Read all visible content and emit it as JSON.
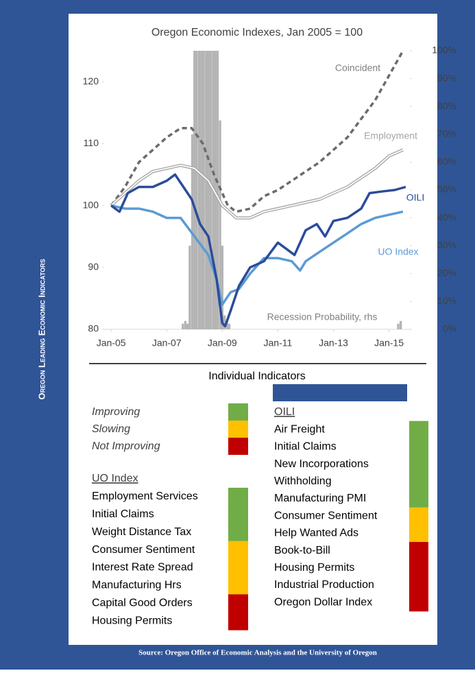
{
  "side_label": "Oregon Leading Economic Indicators",
  "chart_data": {
    "type": "line",
    "title": "Oregon Economic Indexes, Jan 2005 = 100",
    "xlim": [
      2004.75,
      2015.75
    ],
    "xticks": [
      {
        "value": 2005,
        "label": "Jan-05"
      },
      {
        "value": 2007,
        "label": "Jan-07"
      },
      {
        "value": 2009,
        "label": "Jan-09"
      },
      {
        "value": 2011,
        "label": "Jan-11"
      },
      {
        "value": 2013,
        "label": "Jan-13"
      },
      {
        "value": 2015,
        "label": "Jan-15"
      }
    ],
    "ylim": [
      80,
      125
    ],
    "yticks": [
      80,
      90,
      100,
      110,
      120
    ],
    "y2lim": [
      0,
      100
    ],
    "y2ticks": [
      {
        "value": 0,
        "label": "0%"
      },
      {
        "value": 10,
        "label": "10%"
      },
      {
        "value": 20,
        "label": "20%"
      },
      {
        "value": 30,
        "label": "30%"
      },
      {
        "value": 40,
        "label": "40%"
      },
      {
        "value": 50,
        "label": "50%"
      },
      {
        "value": 60,
        "label": "60%"
      },
      {
        "value": 70,
        "label": "70%"
      },
      {
        "value": 80,
        "label": "80%"
      },
      {
        "value": 90,
        "label": "90%"
      },
      {
        "value": 100,
        "label": "100%"
      }
    ],
    "series": [
      {
        "name": "Recession Probability, rhs",
        "color": "#b4b4b4",
        "style": "bar",
        "axis": "y2",
        "x": [
          2007.58,
          2007.67,
          2007.75,
          2007.83,
          2007.92,
          2008.0,
          2008.08,
          2008.17,
          2008.25,
          2008.33,
          2008.42,
          2008.5,
          2008.58,
          2008.67,
          2008.75,
          2008.83,
          2008.92,
          2009.0,
          2009.08,
          2009.17,
          2009.25,
          2015.33,
          2015.42
        ],
        "values": [
          2,
          3,
          2,
          30,
          70,
          100,
          100,
          100,
          100,
          100,
          100,
          100,
          100,
          100,
          100,
          100,
          75,
          30,
          5,
          3,
          2,
          2,
          3
        ]
      },
      {
        "name": "Coincident",
        "color": "#6b6b6b",
        "style": "dashed",
        "x": [
          2005,
          2005.5,
          2006,
          2006.5,
          2007,
          2007.5,
          2007.9,
          2008.3,
          2008.7,
          2009.2,
          2009.5,
          2010,
          2010.5,
          2011,
          2011.5,
          2012,
          2012.5,
          2013,
          2013.5,
          2014,
          2014.5,
          2015,
          2015.5
        ],
        "values": [
          100,
          103,
          107,
          109,
          111,
          112.5,
          112.5,
          110,
          105,
          100,
          99,
          99.5,
          101.5,
          102.5,
          104,
          105.5,
          107,
          109,
          111,
          114,
          117,
          121,
          125
        ]
      },
      {
        "name": "Employment",
        "color": "#a6a6a6",
        "style": "double",
        "x": [
          2005,
          2005.5,
          2006,
          2006.5,
          2007,
          2007.5,
          2008,
          2008.5,
          2009,
          2009.5,
          2010,
          2010.5,
          2011,
          2011.5,
          2012,
          2012.5,
          2013,
          2013.5,
          2014,
          2014.5,
          2015,
          2015.5
        ],
        "values": [
          100,
          102,
          104,
          105.5,
          106,
          106.5,
          106,
          104,
          100,
          98,
          98,
          99,
          99.5,
          100,
          100.5,
          101,
          102,
          103,
          104.5,
          106,
          108,
          109
        ]
      },
      {
        "name": "UO Index",
        "color": "#5b9bd5",
        "style": "solid",
        "x": [
          2005,
          2005.5,
          2006,
          2006.5,
          2007,
          2007.5,
          2008,
          2008.5,
          2008.8,
          2009,
          2009.3,
          2009.6,
          2010,
          2010.5,
          2011,
          2011.5,
          2011.8,
          2012,
          2012.5,
          2013,
          2013.5,
          2014,
          2014.5,
          2015,
          2015.5
        ],
        "values": [
          100,
          99.5,
          99.5,
          99,
          98,
          98,
          95,
          92,
          88,
          84,
          86,
          86.5,
          89,
          91.5,
          91.5,
          91,
          89.5,
          91,
          92.5,
          94,
          95.5,
          97,
          98,
          98.5,
          99
        ]
      },
      {
        "name": "OILI",
        "color": "#2b4c9b",
        "style": "solid",
        "x": [
          2005,
          2005.3,
          2005.6,
          2006,
          2006.5,
          2007,
          2007.3,
          2007.6,
          2007.9,
          2008.2,
          2008.5,
          2008.8,
          2009,
          2009.1,
          2009.3,
          2009.6,
          2010,
          2010.5,
          2011,
          2011.3,
          2011.6,
          2012,
          2012.4,
          2012.7,
          2013,
          2013.5,
          2014,
          2014.3,
          2014.8,
          2015.2,
          2015.6
        ],
        "values": [
          100,
          99,
          102,
          103,
          103,
          104,
          105,
          103,
          101,
          97,
          95,
          88,
          81,
          80.5,
          83,
          87,
          90,
          91,
          94,
          93,
          92,
          96,
          97,
          95,
          97.5,
          98,
          99.5,
          102,
          102.3,
          102.5,
          103
        ]
      }
    ]
  },
  "indicators": {
    "title": "Individual Indicators",
    "legend": [
      {
        "label": "Improving",
        "color": "#70ad47"
      },
      {
        "label": "Slowing",
        "color": "#ffc000"
      },
      {
        "label": "Not Improving",
        "color": "#c00000"
      }
    ],
    "uo_index": {
      "header": "UO Index",
      "items": [
        {
          "name": "Employment Services",
          "status": "Improving"
        },
        {
          "name": "Initial Claims",
          "status": "Improving"
        },
        {
          "name": "Weight Distance Tax",
          "status": "Improving"
        },
        {
          "name": "Consumer Sentiment",
          "status": "Slowing"
        },
        {
          "name": "Interest Rate Spread",
          "status": "Slowing"
        },
        {
          "name": "Manufacturing Hrs",
          "status": "Slowing"
        },
        {
          "name": "Capital Good Orders",
          "status": "Not Improving"
        },
        {
          "name": "Housing Permits",
          "status": "Not Improving"
        }
      ]
    },
    "oili": {
      "header": "OILI",
      "items": [
        {
          "name": "Air Freight",
          "status": "Improving"
        },
        {
          "name": "Initial Claims",
          "status": "Improving"
        },
        {
          "name": "New Incorporations",
          "status": "Improving"
        },
        {
          "name": "Withholding",
          "status": "Improving"
        },
        {
          "name": "Manufacturing PMI",
          "status": "Improving"
        },
        {
          "name": "Consumer Sentiment",
          "status": "Slowing"
        },
        {
          "name": "Help Wanted Ads",
          "status": "Slowing"
        },
        {
          "name": "Book-to-Bill",
          "status": "Not Improving"
        },
        {
          "name": "Housing Permits",
          "status": "Not Improving"
        },
        {
          "name": "Industrial Production",
          "status": "Not Improving"
        },
        {
          "name": "Oregon Dollar Index",
          "status": "Not Improving"
        }
      ]
    }
  },
  "source": "Source: Oregon Office of Economic Analysis and the University of Oregon"
}
